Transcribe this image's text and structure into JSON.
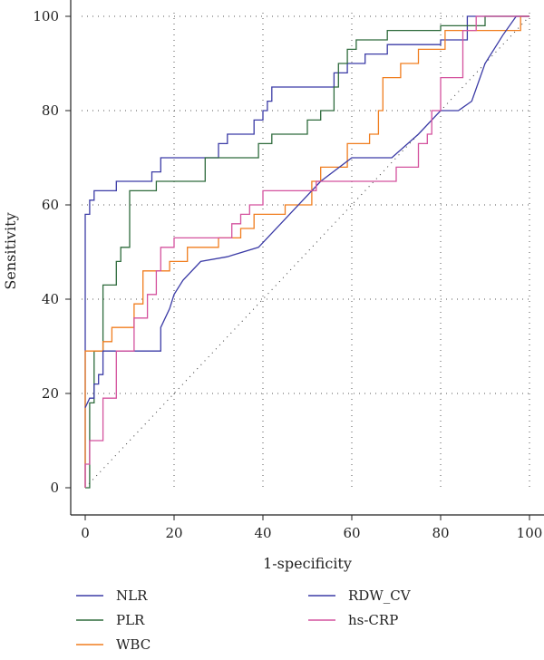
{
  "chart_data": {
    "type": "line",
    "title": "",
    "xlabel": "1-specificity",
    "ylabel": "Sensitivity",
    "xlim": [
      0,
      100
    ],
    "ylim": [
      0,
      100
    ],
    "x_ticks": [
      0,
      20,
      40,
      60,
      80,
      100
    ],
    "y_ticks": [
      0,
      20,
      40,
      60,
      80,
      100
    ],
    "grid": "dotted",
    "reference_line": "diagonal",
    "legend_position": "bottom",
    "series": [
      {
        "name": "NLR",
        "color": "#3b3ba6",
        "points": [
          [
            0,
            0
          ],
          [
            0,
            58
          ],
          [
            1,
            58
          ],
          [
            1,
            61
          ],
          [
            2,
            61
          ],
          [
            2,
            63
          ],
          [
            7,
            63
          ],
          [
            7,
            65
          ],
          [
            15,
            65
          ],
          [
            15,
            67
          ],
          [
            17,
            67
          ],
          [
            17,
            70
          ],
          [
            30,
            70
          ],
          [
            30,
            73
          ],
          [
            32,
            73
          ],
          [
            32,
            75
          ],
          [
            38,
            75
          ],
          [
            38,
            78
          ],
          [
            40,
            78
          ],
          [
            40,
            80
          ],
          [
            41,
            80
          ],
          [
            41,
            82
          ],
          [
            42,
            82
          ],
          [
            42,
            85
          ],
          [
            56,
            85
          ],
          [
            56,
            88
          ],
          [
            59,
            88
          ],
          [
            59,
            90
          ],
          [
            63,
            90
          ],
          [
            63,
            92
          ],
          [
            68,
            92
          ],
          [
            68,
            94
          ],
          [
            80,
            94
          ],
          [
            80,
            95
          ],
          [
            86,
            95
          ],
          [
            86,
            100
          ],
          [
            100,
            100
          ]
        ]
      },
      {
        "name": "PLR",
        "color": "#2e6b3c",
        "points": [
          [
            0,
            0
          ],
          [
            1,
            0
          ],
          [
            1,
            18
          ],
          [
            2,
            18
          ],
          [
            2,
            29
          ],
          [
            4,
            29
          ],
          [
            4,
            43
          ],
          [
            7,
            43
          ],
          [
            7,
            48
          ],
          [
            8,
            48
          ],
          [
            8,
            51
          ],
          [
            10,
            51
          ],
          [
            10,
            63
          ],
          [
            16,
            63
          ],
          [
            16,
            65
          ],
          [
            27,
            65
          ],
          [
            27,
            70
          ],
          [
            39,
            70
          ],
          [
            39,
            73
          ],
          [
            42,
            73
          ],
          [
            42,
            75
          ],
          [
            50,
            75
          ],
          [
            50,
            78
          ],
          [
            53,
            78
          ],
          [
            53,
            80
          ],
          [
            56,
            80
          ],
          [
            56,
            85
          ],
          [
            57,
            85
          ],
          [
            57,
            90
          ],
          [
            59,
            90
          ],
          [
            59,
            93
          ],
          [
            61,
            93
          ],
          [
            61,
            95
          ],
          [
            68,
            95
          ],
          [
            68,
            97
          ],
          [
            80,
            97
          ],
          [
            80,
            98
          ],
          [
            90,
            98
          ],
          [
            90,
            100
          ],
          [
            100,
            100
          ]
        ]
      },
      {
        "name": "WBC",
        "color": "#f07d1e",
        "points": [
          [
            0,
            0
          ],
          [
            0,
            29
          ],
          [
            4,
            29
          ],
          [
            4,
            31
          ],
          [
            6,
            31
          ],
          [
            6,
            34
          ],
          [
            11,
            34
          ],
          [
            11,
            39
          ],
          [
            13,
            39
          ],
          [
            13,
            46
          ],
          [
            19,
            46
          ],
          [
            19,
            48
          ],
          [
            23,
            48
          ],
          [
            23,
            51
          ],
          [
            30,
            51
          ],
          [
            30,
            53
          ],
          [
            35,
            53
          ],
          [
            35,
            55
          ],
          [
            38,
            55
          ],
          [
            38,
            58
          ],
          [
            45,
            58
          ],
          [
            45,
            60
          ],
          [
            51,
            60
          ],
          [
            51,
            65
          ],
          [
            53,
            65
          ],
          [
            53,
            68
          ],
          [
            59,
            68
          ],
          [
            59,
            73
          ],
          [
            64,
            73
          ],
          [
            64,
            75
          ],
          [
            66,
            75
          ],
          [
            66,
            80
          ],
          [
            67,
            80
          ],
          [
            67,
            87
          ],
          [
            71,
            87
          ],
          [
            71,
            90
          ],
          [
            75,
            90
          ],
          [
            75,
            93
          ],
          [
            81,
            93
          ],
          [
            81,
            97
          ],
          [
            98,
            97
          ],
          [
            98,
            100
          ],
          [
            100,
            100
          ]
        ]
      },
      {
        "name": "RDW_CV",
        "color": "#3b3ba6",
        "points": [
          [
            0,
            17
          ],
          [
            1,
            19
          ],
          [
            2,
            19
          ],
          [
            2,
            22
          ],
          [
            3,
            22
          ],
          [
            3,
            24
          ],
          [
            4,
            24
          ],
          [
            4,
            29
          ],
          [
            17,
            29
          ],
          [
            17,
            34
          ],
          [
            19,
            38
          ],
          [
            20,
            41
          ],
          [
            22,
            44
          ],
          [
            26,
            48
          ],
          [
            32,
            49
          ],
          [
            39,
            51
          ],
          [
            44,
            56
          ],
          [
            47,
            59
          ],
          [
            53,
            65
          ],
          [
            60,
            70
          ],
          [
            69,
            70
          ],
          [
            75,
            75
          ],
          [
            80,
            80
          ],
          [
            84,
            80
          ],
          [
            87,
            82
          ],
          [
            90,
            90
          ],
          [
            94,
            96
          ],
          [
            97,
            100
          ],
          [
            100,
            100
          ]
        ]
      },
      {
        "name": "hs-CRP",
        "color": "#d4529e",
        "points": [
          [
            0,
            0
          ],
          [
            0,
            5
          ],
          [
            1,
            5
          ],
          [
            1,
            10
          ],
          [
            4,
            10
          ],
          [
            4,
            19
          ],
          [
            7,
            19
          ],
          [
            7,
            29
          ],
          [
            11,
            29
          ],
          [
            11,
            36
          ],
          [
            14,
            36
          ],
          [
            14,
            41
          ],
          [
            16,
            41
          ],
          [
            16,
            46
          ],
          [
            17,
            46
          ],
          [
            17,
            51
          ],
          [
            20,
            51
          ],
          [
            20,
            53
          ],
          [
            33,
            53
          ],
          [
            33,
            56
          ],
          [
            35,
            56
          ],
          [
            35,
            58
          ],
          [
            37,
            58
          ],
          [
            37,
            60
          ],
          [
            40,
            60
          ],
          [
            40,
            63
          ],
          [
            52,
            63
          ],
          [
            52,
            65
          ],
          [
            70,
            65
          ],
          [
            70,
            68
          ],
          [
            75,
            68
          ],
          [
            75,
            73
          ],
          [
            77,
            73
          ],
          [
            77,
            75
          ],
          [
            78,
            75
          ],
          [
            78,
            80
          ],
          [
            80,
            80
          ],
          [
            80,
            87
          ],
          [
            85,
            87
          ],
          [
            85,
            97
          ],
          [
            88,
            97
          ],
          [
            88,
            100
          ],
          [
            100,
            100
          ]
        ]
      }
    ]
  }
}
